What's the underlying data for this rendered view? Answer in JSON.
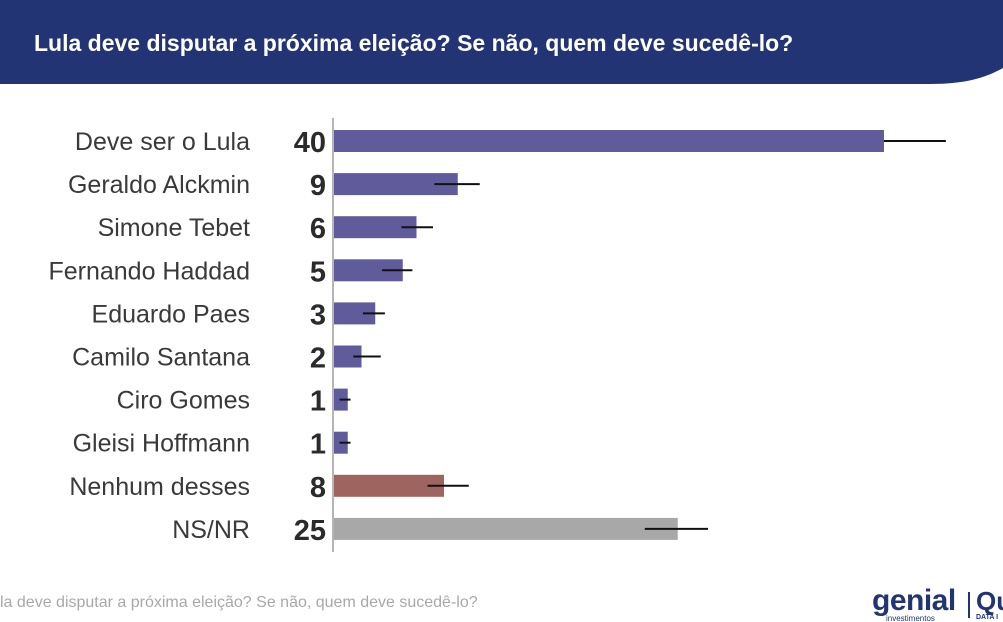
{
  "header": {
    "title": "Lula deve disputar a próxima eleição? Se não, quem deve sucedê-lo?"
  },
  "footer": {
    "question": "la deve disputar a próxima eleição? Se não, quem deve sucedê-lo?",
    "logo_text": "genial",
    "logo_subtext": "investimentos",
    "logo_q": "Qu",
    "logo_q_sub": "DATA I"
  },
  "colors": {
    "header_bg": "#233474",
    "bar_candidate": "#605c9c",
    "bar_none": "#9e6460",
    "bar_undecided": "#a8a8a8"
  },
  "chart_data": {
    "type": "bar",
    "orientation": "horizontal",
    "title": "Lula deve disputar a próxima eleição? Se não, quem deve sucedê-lo?",
    "categories": [
      "Deve ser o Lula",
      "Geraldo Alckmin",
      "Simone Tebet",
      "Fernando Haddad",
      "Eduardo Paes",
      "Camilo Santana",
      "Ciro Gomes",
      "Gleisi Hoffmann",
      "Nenhum desses",
      "NS/NR"
    ],
    "values": [
      40,
      9,
      6,
      5,
      3,
      2,
      1,
      1,
      8,
      25
    ],
    "error_bars": [
      [
        40,
        44.5
      ],
      [
        7.3,
        10.6
      ],
      [
        4.9,
        7.2
      ],
      [
        3.5,
        5.7
      ],
      [
        2.1,
        3.7
      ],
      [
        1.4,
        3.4
      ],
      [
        0.4,
        1.2
      ],
      [
        0.4,
        1.2
      ],
      [
        6.8,
        9.8
      ],
      [
        22.6,
        27.2
      ]
    ],
    "bar_colors": [
      "#605c9c",
      "#605c9c",
      "#605c9c",
      "#605c9c",
      "#605c9c",
      "#605c9c",
      "#605c9c",
      "#605c9c",
      "#9e6460",
      "#a8a8a8"
    ],
    "xlim": [
      0,
      50
    ],
    "grid": false,
    "legend": "none"
  }
}
